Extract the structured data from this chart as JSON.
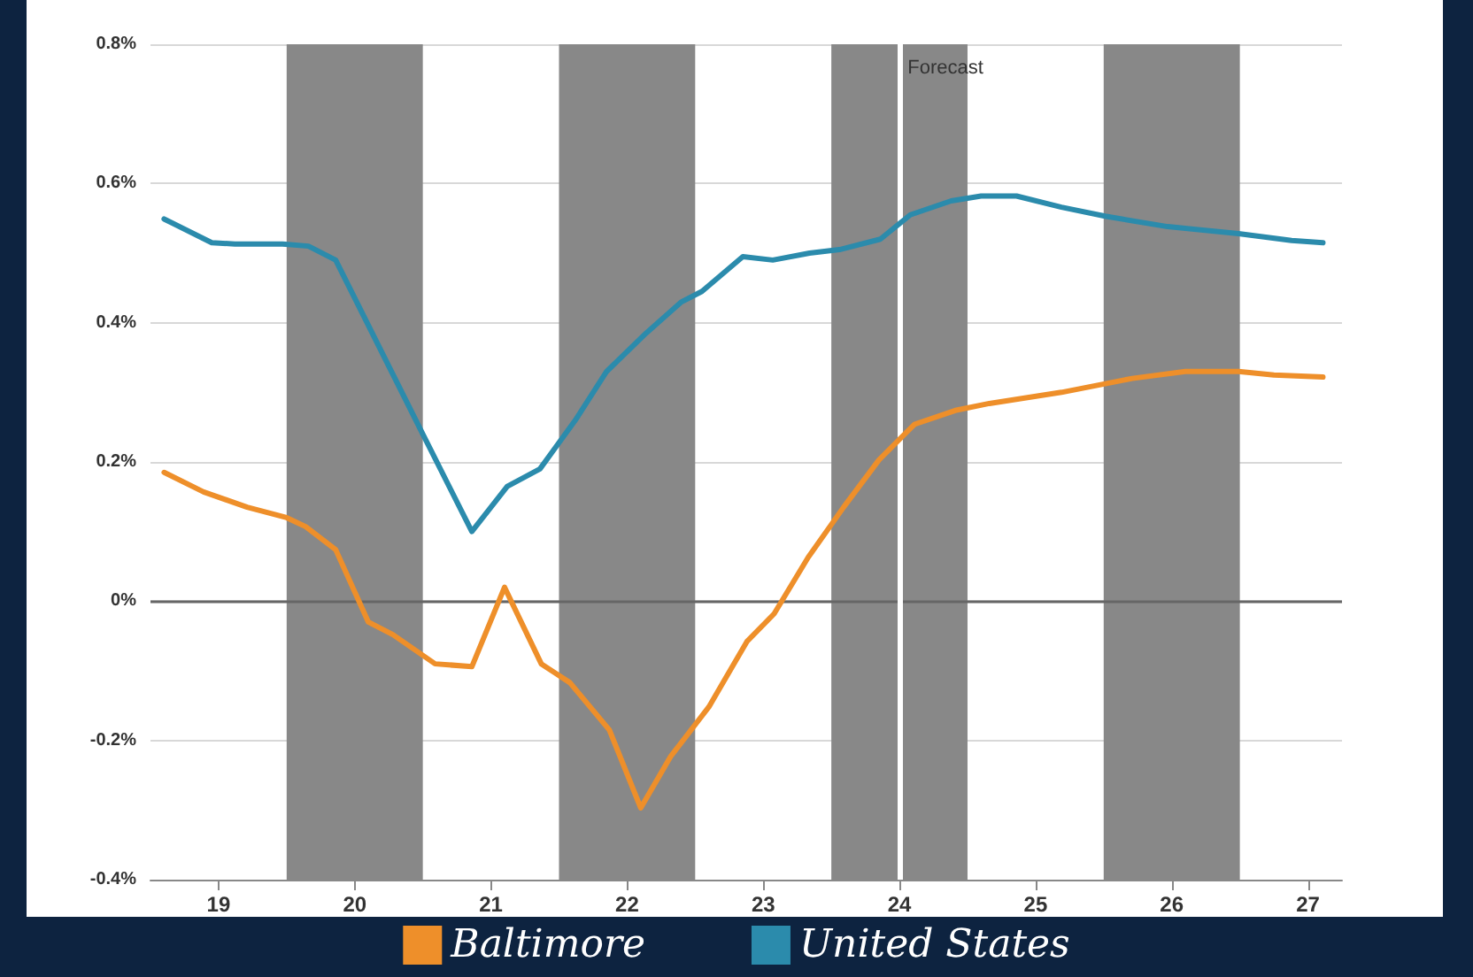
{
  "chart_data": {
    "type": "line",
    "xlim": [
      18.5,
      27.25
    ],
    "xticks": [
      19,
      20,
      21,
      22,
      23,
      24,
      25,
      26,
      27
    ],
    "ylim": [
      -0.4,
      0.8
    ],
    "yticks": [
      {
        "value": -0.4,
        "label": "-0.4%"
      },
      {
        "value": -0.2,
        "label": "-0.2%"
      },
      {
        "value": 0,
        "label": "0%"
      },
      {
        "value": 0.2,
        "label": "0.2%"
      },
      {
        "value": 0.4,
        "label": "0.4%"
      },
      {
        "value": 0.6,
        "label": "0.6%"
      },
      {
        "value": 0.8,
        "label": "0.8%"
      }
    ],
    "grid": "y",
    "legend": "bottom",
    "bands": [
      {
        "axis": "x",
        "from": 19.5,
        "to": 20.5,
        "color": "#888888"
      },
      {
        "axis": "x",
        "from": 21.5,
        "to": 22.5,
        "color": "#888888"
      },
      {
        "axis": "x",
        "from": 23.5,
        "to": 24.5,
        "color": "#888888"
      },
      {
        "axis": "x",
        "from": 25.5,
        "to": 26.5,
        "color": "#888888"
      }
    ],
    "ref_lines": [
      {
        "axis": "y",
        "value": 0,
        "color": "#666666"
      },
      {
        "axis": "x",
        "value": 24,
        "label": "Forecast",
        "color": "#ffffff"
      }
    ],
    "series": [
      {
        "name": "Baltimore",
        "color": "#ee8f2a",
        "x": [
          18.6,
          18.89,
          19.21,
          19.5,
          19.64,
          19.86,
          20.1,
          20.28,
          20.59,
          20.86,
          21.1,
          21.37,
          21.58,
          21.87,
          22.1,
          22.32,
          22.6,
          22.88,
          23.08,
          23.33,
          23.59,
          23.85,
          24.11,
          24.41,
          24.66,
          25.19,
          25.71,
          26.1,
          26.49,
          26.75,
          27.11
        ],
        "values": [
          0.185,
          0.157,
          0.135,
          0.12,
          0.107,
          0.074,
          -0.03,
          -0.048,
          -0.09,
          -0.094,
          0.02,
          -0.09,
          -0.117,
          -0.185,
          -0.297,
          -0.223,
          -0.152,
          -0.058,
          -0.018,
          0.063,
          0.135,
          0.203,
          0.254,
          0.274,
          0.284,
          0.3,
          0.32,
          0.33,
          0.33,
          0.325,
          0.322
        ]
      },
      {
        "name": "United States",
        "color": "#2b8bac",
        "x": [
          18.6,
          18.95,
          19.12,
          19.47,
          19.66,
          19.86,
          20.5,
          20.86,
          21.12,
          21.36,
          21.62,
          21.85,
          22.14,
          22.4,
          22.55,
          22.85,
          23.07,
          23.34,
          23.56,
          23.86,
          24.08,
          24.38,
          24.6,
          24.86,
          25.19,
          25.51,
          25.97,
          26.49,
          26.88,
          27.11
        ],
        "values": [
          0.549,
          0.515,
          0.513,
          0.513,
          0.51,
          0.49,
          0.24,
          0.1,
          0.165,
          0.19,
          0.26,
          0.33,
          0.385,
          0.43,
          0.445,
          0.495,
          0.49,
          0.5,
          0.505,
          0.52,
          0.555,
          0.575,
          0.582,
          0.582,
          0.566,
          0.553,
          0.538,
          0.528,
          0.518,
          0.515
        ]
      }
    ]
  }
}
